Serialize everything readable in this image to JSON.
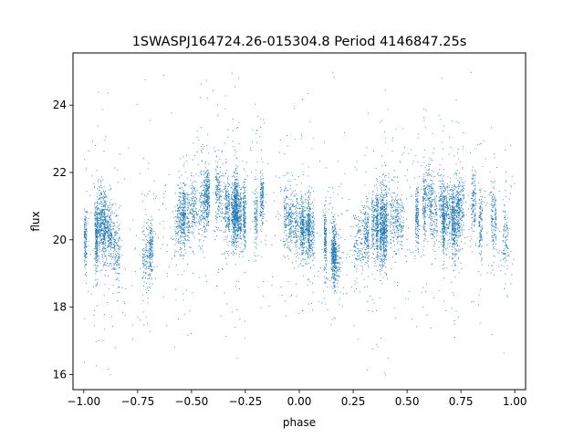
{
  "chart_data": {
    "type": "scatter",
    "title": "1SWASPJ164724.26-015304.8 Period 4146847.25s",
    "xlabel": "phase",
    "ylabel": "flux",
    "xlim": [
      -1.05,
      1.05
    ],
    "ylim": [
      15.55,
      25.55
    ],
    "xticks": [
      -1.0,
      -0.75,
      -0.5,
      -0.25,
      0.0,
      0.25,
      0.5,
      0.75,
      1.0
    ],
    "xtick_labels": [
      "−1.00",
      "−0.75",
      "−0.50",
      "−0.25",
      "0.00",
      "0.25",
      "0.50",
      "0.75",
      "1.00"
    ],
    "yticks": [
      16,
      18,
      20,
      22,
      24
    ],
    "ytick_labels": [
      "16",
      "18",
      "20",
      "22",
      "24"
    ],
    "grid": false,
    "marker_color": "#1f77b4",
    "series": [
      {
        "phase_range": [
          -1.0,
          1.0
        ],
        "approx_profile": {
          "phase": [
            -1.0,
            -0.9,
            -0.8,
            -0.7,
            -0.6,
            -0.5,
            -0.4,
            -0.3,
            -0.2,
            -0.1,
            0.0,
            0.1,
            0.2,
            0.3,
            0.4,
            0.5,
            0.6,
            0.7,
            0.8,
            0.9,
            1.0
          ],
          "flux": [
            20.2,
            20.4,
            19.6,
            19.9,
            20.4,
            20.9,
            21.2,
            20.9,
            21.0,
            20.7,
            20.2,
            19.8,
            19.5,
            20.0,
            20.5,
            20.9,
            21.1,
            20.6,
            20.9,
            20.5,
            20.2
          ]
        },
        "flux_extent": [
          16.0,
          25.0
        ]
      }
    ]
  }
}
